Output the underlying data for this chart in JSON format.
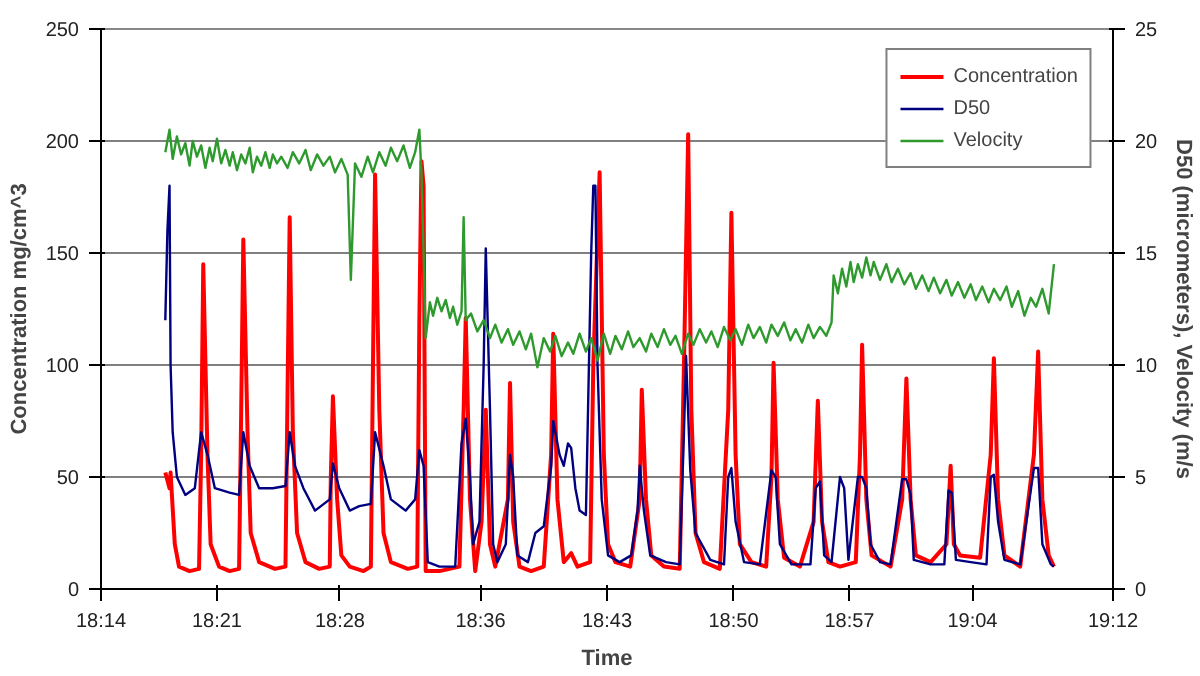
{
  "chart_data": {
    "type": "line",
    "xlabel": "Time",
    "ylabel": "Concentration mg/cm^3",
    "y2label": "D50 (micrometers), Velocity (m/s",
    "xlim": [
      18.24,
      19.2
    ],
    "xticks": [
      {
        "value": 18.24,
        "label": "18:14"
      },
      {
        "value": 18.35,
        "label": "18:21"
      },
      {
        "value": 18.4667,
        "label": "18:28"
      },
      {
        "value": 18.6,
        "label": "18:36"
      },
      {
        "value": 18.72,
        "label": "18:43"
      },
      {
        "value": 18.84,
        "label": "18:50"
      },
      {
        "value": 18.95,
        "label": "18:57"
      },
      {
        "value": 19.0667,
        "label": "19:04"
      },
      {
        "value": 19.2,
        "label": "19:12"
      }
    ],
    "ylim": [
      0,
      250
    ],
    "yticks": [
      0,
      50,
      100,
      150,
      200,
      250
    ],
    "y2lim": [
      0,
      25
    ],
    "y2ticks": [
      0,
      5,
      10,
      15,
      20,
      25
    ],
    "grid": "y",
    "legend": "top right",
    "marker": "none",
    "line_style": "solid",
    "series": [
      {
        "name": "Concentration",
        "color": "#ff0000",
        "x": [
          18.301,
          18.305,
          18.306,
          18.31,
          18.314,
          18.324,
          18.333,
          18.335,
          18.337,
          18.341,
          18.344,
          18.352,
          18.362,
          18.371,
          18.373,
          18.375,
          18.379,
          18.382,
          18.39,
          18.405,
          18.415,
          18.417,
          18.419,
          18.422,
          18.426,
          18.434,
          18.447,
          18.457,
          18.458,
          18.46,
          18.464,
          18.468,
          18.476,
          18.489,
          18.496,
          18.498,
          18.5,
          18.504,
          18.508,
          18.515,
          18.531,
          18.54,
          18.542,
          18.544,
          18.546,
          18.548,
          18.561,
          18.58,
          18.584,
          18.586,
          18.59,
          18.595,
          18.601,
          18.605,
          18.609,
          18.614,
          18.626,
          18.628,
          18.631,
          18.637,
          18.648,
          18.66,
          18.667,
          18.669,
          18.673,
          18.679,
          18.686,
          18.692,
          18.704,
          18.707,
          18.713,
          18.717,
          18.721,
          18.728,
          18.742,
          18.751,
          18.753,
          18.757,
          18.762,
          18.774,
          18.789,
          18.793,
          18.797,
          18.8,
          18.804,
          18.812,
          18.827,
          18.835,
          18.838,
          18.842,
          18.846,
          18.857,
          18.871,
          18.876,
          18.878,
          18.882,
          18.888,
          18.903,
          18.916,
          18.92,
          18.924,
          18.93,
          18.941,
          18.956,
          18.96,
          18.962,
          18.966,
          18.971,
          18.989,
          19.0,
          19.004,
          19.008,
          19.013,
          19.027,
          19.042,
          19.046,
          19.049,
          19.055,
          19.074,
          19.084,
          19.087,
          19.091,
          19.097,
          19.112,
          19.125,
          19.129,
          19.133,
          19.139,
          19.144
        ],
        "values": [
          52,
          45,
          52,
          20,
          10,
          8,
          9,
          60,
          145,
          60,
          20,
          10,
          8,
          9,
          80,
          156,
          70,
          25,
          12,
          9,
          10,
          90,
          166,
          70,
          25,
          12,
          9,
          10,
          50,
          86,
          40,
          15,
          10,
          8,
          10,
          100,
          185,
          80,
          25,
          12,
          9,
          10,
          120,
          191,
          180,
          8,
          8,
          10,
          80,
          121,
          40,
          8,
          30,
          80,
          20,
          10,
          40,
          92,
          30,
          10,
          8,
          10,
          60,
          114,
          40,
          12,
          16,
          10,
          12,
          100,
          186,
          60,
          20,
          12,
          10,
          40,
          89,
          40,
          15,
          10,
          9,
          100,
          203,
          80,
          25,
          12,
          9,
          80,
          168,
          60,
          20,
          12,
          10,
          50,
          101,
          40,
          14,
          10,
          30,
          84,
          30,
          12,
          10,
          12,
          60,
          109,
          40,
          15,
          10,
          40,
          94,
          40,
          15,
          12,
          20,
          55,
          20,
          15,
          14,
          60,
          103,
          40,
          15,
          10,
          60,
          106,
          40,
          15,
          10
        ]
      },
      {
        "name": "D50",
        "color": "#000080",
        "axis": "y2",
        "x": [
          18.301,
          18.303,
          18.305,
          18.306,
          18.308,
          18.312,
          18.32,
          18.329,
          18.335,
          18.341,
          18.348,
          18.362,
          18.371,
          18.375,
          18.381,
          18.39,
          18.403,
          18.415,
          18.419,
          18.424,
          18.432,
          18.443,
          18.457,
          18.46,
          18.466,
          18.476,
          18.485,
          18.496,
          18.5,
          18.508,
          18.515,
          18.529,
          18.538,
          18.542,
          18.546,
          18.55,
          18.561,
          18.576,
          18.582,
          18.586,
          18.59,
          18.593,
          18.599,
          18.603,
          18.605,
          18.609,
          18.612,
          18.616,
          18.624,
          18.628,
          18.631,
          18.635,
          18.645,
          18.652,
          18.66,
          18.667,
          18.669,
          18.675,
          18.679,
          18.683,
          18.686,
          18.69,
          18.694,
          18.7,
          18.705,
          18.707,
          18.709,
          18.711,
          18.715,
          18.721,
          18.732,
          18.743,
          18.749,
          18.751,
          18.755,
          18.761,
          18.776,
          18.789,
          18.793,
          18.795,
          18.799,
          18.804,
          18.818,
          18.831,
          18.835,
          18.838,
          18.842,
          18.85,
          18.865,
          18.876,
          18.88,
          18.884,
          18.895,
          18.913,
          18.918,
          18.922,
          18.926,
          18.933,
          18.941,
          18.945,
          18.949,
          18.958,
          18.962,
          18.966,
          18.97,
          18.979,
          18.989,
          19.0,
          19.004,
          19.008,
          19.011,
          19.027,
          19.04,
          19.044,
          19.047,
          19.051,
          19.065,
          19.08,
          19.084,
          19.087,
          19.091,
          19.097,
          19.112,
          19.125,
          19.129,
          19.133,
          19.141,
          19.144
        ],
        "values": [
          12,
          16,
          18,
          10,
          7,
          5,
          4.2,
          4.5,
          7,
          6,
          4.5,
          4.3,
          4.2,
          7,
          5.5,
          4.5,
          4.5,
          4.6,
          7,
          5.5,
          4.5,
          3.5,
          4,
          5.6,
          4.5,
          3.5,
          3.7,
          3.8,
          7,
          5.5,
          4,
          3.5,
          4,
          6.2,
          5.5,
          1.2,
          1,
          1,
          6.5,
          7.6,
          5,
          2,
          3,
          10,
          15.2,
          8,
          2,
          1.2,
          2,
          6,
          5,
          1.5,
          1.2,
          2.5,
          2.8,
          5.5,
          7.5,
          6,
          5.5,
          6.5,
          6.3,
          4.5,
          3.5,
          3.3,
          15,
          18,
          18,
          10,
          4,
          1.5,
          1.2,
          1.5,
          3.5,
          5.5,
          3.5,
          1.5,
          1.2,
          1.1,
          7,
          10.4,
          5.3,
          2.5,
          1.3,
          1.1,
          5,
          5.4,
          3,
          1.2,
          1.1,
          5.3,
          5,
          2,
          1.1,
          1.1,
          4.5,
          4.8,
          1.5,
          1.2,
          5,
          4.5,
          1.3,
          5,
          5,
          4.5,
          2,
          1.2,
          1.1,
          4.9,
          4.9,
          4.2,
          1.3,
          1.1,
          1.1,
          4.4,
          4.3,
          1.3,
          1.2,
          1.1,
          5.0,
          5.1,
          3,
          1.3,
          1.1,
          5.4,
          5.4,
          2,
          1.1,
          1.0
        ]
      },
      {
        "name": "Velocity",
        "color": "#2e9a2e",
        "axis": "y2",
        "x": [
          18.301,
          18.305,
          18.308,
          18.312,
          18.316,
          18.32,
          18.324,
          18.327,
          18.331,
          18.335,
          18.339,
          18.343,
          18.346,
          18.35,
          18.354,
          18.358,
          18.362,
          18.365,
          18.369,
          18.373,
          18.377,
          18.381,
          18.384,
          18.388,
          18.392,
          18.396,
          18.4,
          18.403,
          18.407,
          18.411,
          18.417,
          18.422,
          18.428,
          18.434,
          18.439,
          18.445,
          18.451,
          18.457,
          18.462,
          18.468,
          18.474,
          18.477,
          18.481,
          18.487,
          18.493,
          18.498,
          18.504,
          18.51,
          18.515,
          18.521,
          18.527,
          18.533,
          18.538,
          18.542,
          18.544,
          18.546,
          18.548,
          18.552,
          18.555,
          18.559,
          18.563,
          18.567,
          18.571,
          18.574,
          18.578,
          18.582,
          18.584,
          18.586,
          18.591,
          18.597,
          18.603,
          18.609,
          18.614,
          18.62,
          18.626,
          18.631,
          18.637,
          18.643,
          18.648,
          18.654,
          18.66,
          18.666,
          18.671,
          18.677,
          18.683,
          18.688,
          18.694,
          18.7,
          18.705,
          18.711,
          18.717,
          18.723,
          18.728,
          18.734,
          18.74,
          18.745,
          18.751,
          18.757,
          18.762,
          18.768,
          18.774,
          18.78,
          18.785,
          18.791,
          18.797,
          18.802,
          18.808,
          18.814,
          18.819,
          18.825,
          18.831,
          18.837,
          18.842,
          18.848,
          18.854,
          18.859,
          18.865,
          18.871,
          18.876,
          18.882,
          18.888,
          18.894,
          18.899,
          18.905,
          18.911,
          18.916,
          18.922,
          18.928,
          18.933,
          18.935,
          18.939,
          18.943,
          18.947,
          18.951,
          18.954,
          18.958,
          18.962,
          18.966,
          18.97,
          18.973,
          18.979,
          18.985,
          18.99,
          18.996,
          19.002,
          19.008,
          19.013,
          19.019,
          19.025,
          19.03,
          19.036,
          19.042,
          19.047,
          19.053,
          19.059,
          19.065,
          19.07,
          19.076,
          19.082,
          19.087,
          19.093,
          19.099,
          19.104,
          19.11,
          19.116,
          19.122,
          19.127,
          19.133,
          19.139,
          19.144
        ],
        "values": [
          19.5,
          20.5,
          19.2,
          20.2,
          19.4,
          19.9,
          18.9,
          20.0,
          19.3,
          19.8,
          18.8,
          19.7,
          19.1,
          20.1,
          19.0,
          19.6,
          18.9,
          19.5,
          18.7,
          19.4,
          19.0,
          19.7,
          18.6,
          19.3,
          18.9,
          19.5,
          18.8,
          19.4,
          19.0,
          19.3,
          18.8,
          19.5,
          19.0,
          19.6,
          18.7,
          19.4,
          18.9,
          19.3,
          18.6,
          19.2,
          18.5,
          13.8,
          19.0,
          18.4,
          19.3,
          18.6,
          19.5,
          18.9,
          19.7,
          19.1,
          19.8,
          18.8,
          19.5,
          20.5,
          18.5,
          15.0,
          11.2,
          12.8,
          12.2,
          13.0,
          12.4,
          12.9,
          12.1,
          12.6,
          11.8,
          12.4,
          16.6,
          12.0,
          12.3,
          11.5,
          12.0,
          11.2,
          11.8,
          11.0,
          11.6,
          10.9,
          11.5,
          10.7,
          11.4,
          9.9,
          11.2,
          10.6,
          11.3,
          10.4,
          11.0,
          10.5,
          11.4,
          10.6,
          11.2,
          10.2,
          11.4,
          10.5,
          11.3,
          10.7,
          11.5,
          10.8,
          11.2,
          10.6,
          11.4,
          10.8,
          11.6,
          10.9,
          11.3,
          10.5,
          11.4,
          10.9,
          11.6,
          11.0,
          11.5,
          10.8,
          11.7,
          11.1,
          11.6,
          10.9,
          11.8,
          11.2,
          11.7,
          11.0,
          11.8,
          11.3,
          11.9,
          11.1,
          11.6,
          11.0,
          11.8,
          11.2,
          11.7,
          11.3,
          11.9,
          14.0,
          13.2,
          14.3,
          13.5,
          14.6,
          13.7,
          14.5,
          13.9,
          14.8,
          14.0,
          14.6,
          13.8,
          14.5,
          13.7,
          14.3,
          13.6,
          14.1,
          13.4,
          14.0,
          13.3,
          13.9,
          13.2,
          13.8,
          13.1,
          13.7,
          13.0,
          13.6,
          12.9,
          13.5,
          12.8,
          13.4,
          12.9,
          13.5,
          12.6,
          13.3,
          12.2,
          13.0,
          12.6,
          13.4,
          12.3,
          14.5
        ]
      }
    ]
  }
}
